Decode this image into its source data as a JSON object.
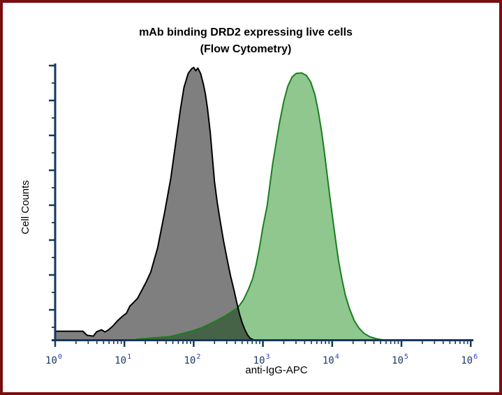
{
  "window": {
    "background_color": "#FFFFFF",
    "border_color": "#7A0E10"
  },
  "chart_data": {
    "type": "area",
    "chart_kind": "flow-cytometry-histogram-overlay",
    "title": "mAb binding DRD2 expressing live cells",
    "subtitle": "(Flow Cytometry)",
    "xlabel": "anti-IgG-APC",
    "ylabel": "Cell Counts",
    "legend": "none",
    "grid": false,
    "axis_color": "#17365D",
    "tick_label_color": "#1F3566",
    "tick_exponent_color": "#2B3ECC",
    "title_color": "#000000",
    "axis_label_color": "#000000",
    "x_axis": {
      "scale": "log10",
      "min": 1,
      "max": 1000000,
      "tick_exponents": [
        0,
        1,
        2,
        3,
        4,
        5,
        6
      ],
      "tick_labels": [
        "10⁰",
        "10¹",
        "10²",
        "10³",
        "10⁴",
        "10⁵",
        "10⁶"
      ],
      "minor_ticks": "log decades 2-9"
    },
    "y_axis": {
      "label": "Cell Counts",
      "numeric_labels_shown": false
    },
    "points_format": [
      "log10_x",
      "relative_count_0_to_1"
    ],
    "series": [
      {
        "id": "gray",
        "name": "gray-histogram",
        "description": "left peak (lower fluorescence population)",
        "fill": "rgba(0,0,0,0.5)",
        "fill_appearance_on_white": "#808080",
        "stroke": "#000000",
        "peak_x_estimate": 100,
        "peak_log10_x": 2.0,
        "points": [
          [
            0.0,
            0.033
          ],
          [
            0.2,
            0.033
          ],
          [
            0.4,
            0.033
          ],
          [
            0.46,
            0.018
          ],
          [
            0.55,
            0.015
          ],
          [
            0.6,
            0.031
          ],
          [
            0.67,
            0.038
          ],
          [
            0.72,
            0.03
          ],
          [
            0.77,
            0.038
          ],
          [
            0.83,
            0.051
          ],
          [
            0.9,
            0.071
          ],
          [
            0.97,
            0.087
          ],
          [
            1.03,
            0.099
          ],
          [
            1.08,
            0.125
          ],
          [
            1.14,
            0.14
          ],
          [
            1.19,
            0.153
          ],
          [
            1.31,
            0.211
          ],
          [
            1.38,
            0.249
          ],
          [
            1.48,
            0.338
          ],
          [
            1.58,
            0.466
          ],
          [
            1.67,
            0.593
          ],
          [
            1.74,
            0.72
          ],
          [
            1.81,
            0.847
          ],
          [
            1.86,
            0.924
          ],
          [
            1.92,
            0.975
          ],
          [
            1.97,
            0.992
          ],
          [
            2.0,
            0.997
          ],
          [
            2.03,
            0.985
          ],
          [
            2.06,
            0.995
          ],
          [
            2.1,
            0.975
          ],
          [
            2.14,
            0.936
          ],
          [
            2.17,
            0.898
          ],
          [
            2.2,
            0.847
          ],
          [
            2.24,
            0.758
          ],
          [
            2.27,
            0.669
          ],
          [
            2.3,
            0.58
          ],
          [
            2.34,
            0.504
          ],
          [
            2.38,
            0.44
          ],
          [
            2.43,
            0.364
          ],
          [
            2.48,
            0.3
          ],
          [
            2.53,
            0.237
          ],
          [
            2.58,
            0.186
          ],
          [
            2.62,
            0.14
          ],
          [
            2.66,
            0.097
          ],
          [
            2.7,
            0.064
          ],
          [
            2.74,
            0.038
          ],
          [
            2.78,
            0.018
          ],
          [
            2.82,
            0.006
          ],
          [
            2.87,
            0.001
          ]
        ]
      },
      {
        "id": "green",
        "name": "green-histogram",
        "description": "right peak (higher fluorescence population)",
        "fill": "#8FC78F",
        "stroke": "#1A7D1F",
        "peak_x_estimate": 3400,
        "peak_log10_x": 3.53,
        "points": [
          [
            1.16,
            0.003
          ],
          [
            1.4,
            0.008
          ],
          [
            1.66,
            0.013
          ],
          [
            1.97,
            0.033
          ],
          [
            2.12,
            0.046
          ],
          [
            2.27,
            0.064
          ],
          [
            2.42,
            0.084
          ],
          [
            2.54,
            0.102
          ],
          [
            2.64,
            0.12
          ],
          [
            2.72,
            0.148
          ],
          [
            2.79,
            0.186
          ],
          [
            2.85,
            0.224
          ],
          [
            2.9,
            0.275
          ],
          [
            2.95,
            0.338
          ],
          [
            3.0,
            0.415
          ],
          [
            3.06,
            0.491
          ],
          [
            3.1,
            0.567
          ],
          [
            3.14,
            0.644
          ],
          [
            3.19,
            0.72
          ],
          [
            3.24,
            0.796
          ],
          [
            3.3,
            0.873
          ],
          [
            3.36,
            0.929
          ],
          [
            3.42,
            0.962
          ],
          [
            3.48,
            0.975
          ],
          [
            3.56,
            0.977
          ],
          [
            3.63,
            0.967
          ],
          [
            3.69,
            0.944
          ],
          [
            3.75,
            0.898
          ],
          [
            3.8,
            0.835
          ],
          [
            3.85,
            0.758
          ],
          [
            3.89,
            0.682
          ],
          [
            3.93,
            0.598
          ],
          [
            3.97,
            0.517
          ],
          [
            4.01,
            0.44
          ],
          [
            4.05,
            0.364
          ],
          [
            4.09,
            0.293
          ],
          [
            4.14,
            0.224
          ],
          [
            4.19,
            0.165
          ],
          [
            4.25,
            0.115
          ],
          [
            4.32,
            0.071
          ],
          [
            4.39,
            0.043
          ],
          [
            4.46,
            0.025
          ],
          [
            4.54,
            0.013
          ],
          [
            4.64,
            0.005
          ],
          [
            4.74,
            0.001
          ]
        ]
      }
    ]
  }
}
